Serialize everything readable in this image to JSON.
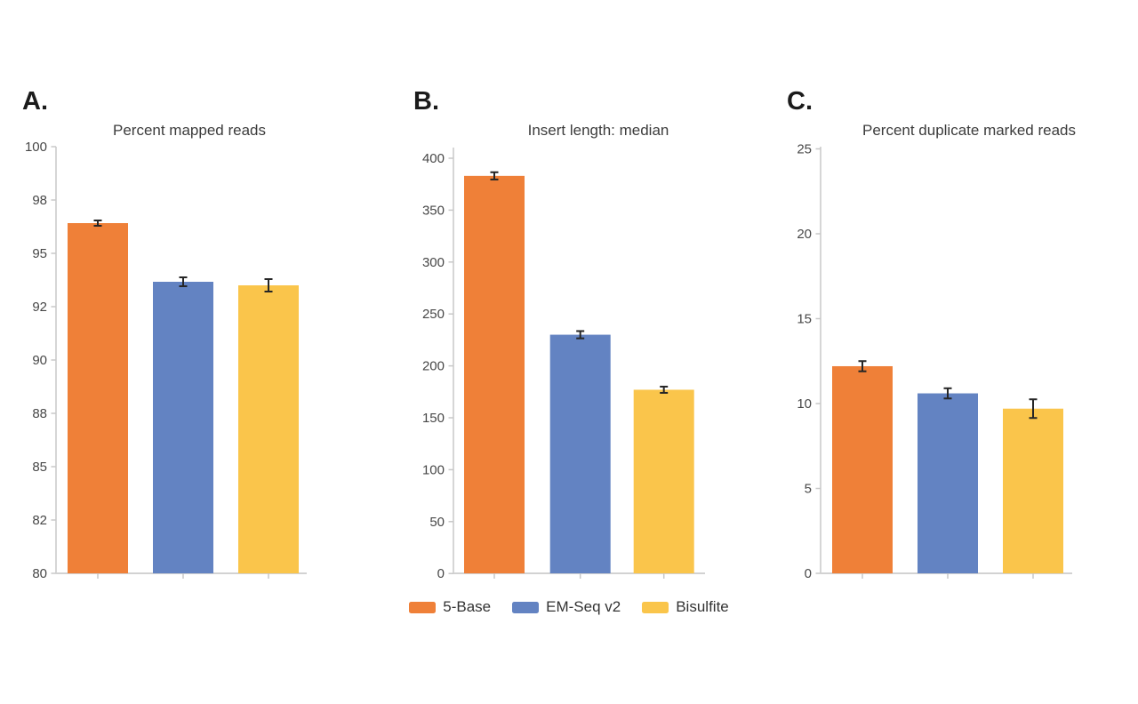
{
  "figure_colors": {
    "background": "#ffffff",
    "axis_line": "#c8c8c8",
    "baseline": "#d2d2d2",
    "error_bar": "#262626",
    "tick_label": "#474747",
    "title_text": "#3c3c3c",
    "panel_letter": "#1b1b1b"
  },
  "legend": {
    "position": "bottom",
    "items": [
      {
        "label": "5-Base",
        "color": "#EF8038"
      },
      {
        "label": "EM-Seq v2",
        "color": "#6383C2"
      },
      {
        "label": "Bisulfite",
        "color": "#FAC54B"
      }
    ]
  },
  "chart_data": [
    {
      "type": "bar",
      "panel_label": "A.",
      "title": "Percent mapped reads",
      "categories": [
        "5-Base",
        "EM-Seq v2",
        "Bisulfite"
      ],
      "values": [
        96.7,
        93.4,
        93.2
      ],
      "errors": [
        0.15,
        0.25,
        0.35
      ],
      "bar_colors": [
        "#EF8038",
        "#6383C2",
        "#FAC54B"
      ],
      "y_ticks": [
        100,
        98,
        95,
        92,
        90,
        88,
        85,
        82,
        80
      ],
      "ylim": [
        80,
        100
      ],
      "xlabel": "",
      "ylabel": "",
      "grid": false,
      "error_bars": true
    },
    {
      "type": "bar",
      "panel_label": "B.",
      "title": "Insert length: median",
      "categories": [
        "5-Base",
        "EM-Seq v2",
        "Bisulfite"
      ],
      "values": [
        383,
        230,
        177
      ],
      "errors": [
        3.5,
        3.5,
        3
      ],
      "bar_colors": [
        "#EF8038",
        "#6383C2",
        "#FAC54B"
      ],
      "y_ticks": [
        400,
        350,
        300,
        250,
        200,
        150,
        100,
        50,
        0
      ],
      "ylim": [
        0,
        400
      ],
      "xlabel": "",
      "ylabel": "",
      "grid": false,
      "error_bars": true
    },
    {
      "type": "bar",
      "panel_label": "C.",
      "title": "Percent duplicate marked reads",
      "categories": [
        "5-Base",
        "EM-Seq v2",
        "Bisulfite"
      ],
      "values": [
        12.2,
        10.6,
        9.7
      ],
      "errors": [
        0.3,
        0.3,
        0.55
      ],
      "bar_colors": [
        "#EF8038",
        "#6383C2",
        "#FAC54B"
      ],
      "y_ticks": [
        25,
        20,
        15,
        10,
        5,
        0
      ],
      "ylim": [
        0,
        25
      ],
      "xlabel": "",
      "ylabel": "",
      "grid": false,
      "error_bars": true
    }
  ]
}
